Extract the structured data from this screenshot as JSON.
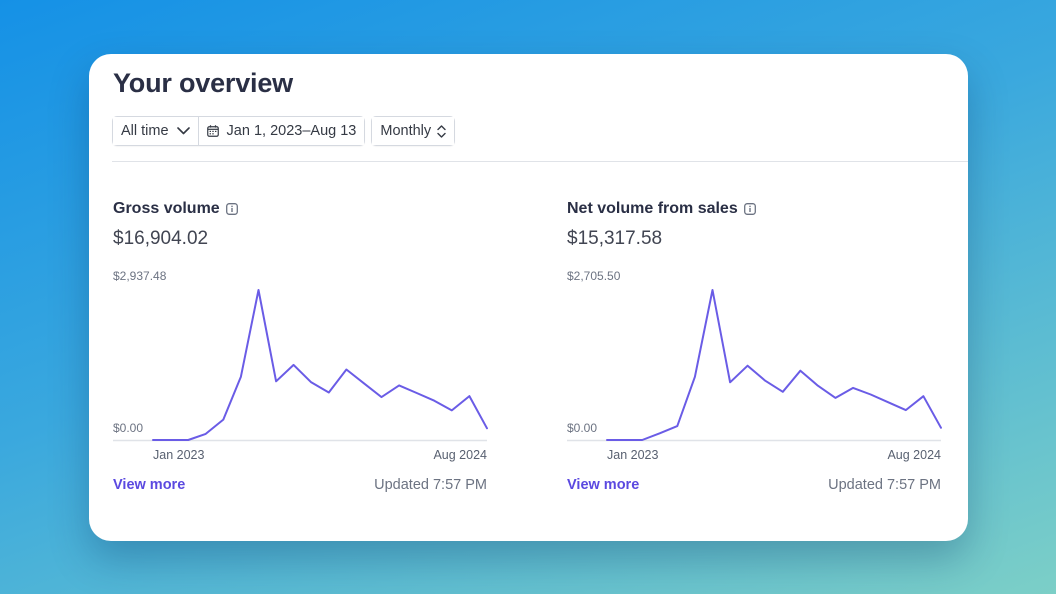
{
  "overview": {
    "title": "Your overview",
    "filters": {
      "range_label": "All time",
      "date_range": "Jan 1, 2023–Aug 13",
      "interval": "Monthly"
    }
  },
  "colors": {
    "line": "#6a5ce6",
    "link": "#5b49e0",
    "axis": "#e0e3e8"
  },
  "panels": [
    {
      "title": "Gross volume",
      "value": "$16,904.02",
      "view_more": "View more",
      "updated": "Updated 7:57 PM",
      "chart_data": {
        "type": "line",
        "ymax_label": "$2,937.48",
        "ymin_label": "$0.00",
        "x_start_label": "Jan 2023",
        "x_end_label": "Aug 2024",
        "ylim": [
          0,
          2937.48
        ],
        "values": [
          0,
          0,
          0,
          120,
          400,
          1240,
          2937.48,
          1150,
          1470,
          1130,
          930,
          1380,
          1110,
          840,
          1070,
          920,
          770,
          580,
          860,
          230
        ]
      }
    },
    {
      "title": "Net volume from sales",
      "value": "$15,317.58",
      "view_more": "View more",
      "updated": "Updated 7:57 PM",
      "chart_data": {
        "type": "line",
        "ymax_label": "$2,705.50",
        "ymin_label": "$0.00",
        "x_start_label": "Jan 2023",
        "x_end_label": "Aug 2024",
        "ylim": [
          0,
          2705.5
        ],
        "values": [
          0,
          0,
          0,
          120,
          250,
          1140,
          2705.5,
          1040,
          1340,
          1070,
          870,
          1250,
          980,
          760,
          940,
          820,
          680,
          540,
          790,
          220
        ]
      }
    }
  ]
}
